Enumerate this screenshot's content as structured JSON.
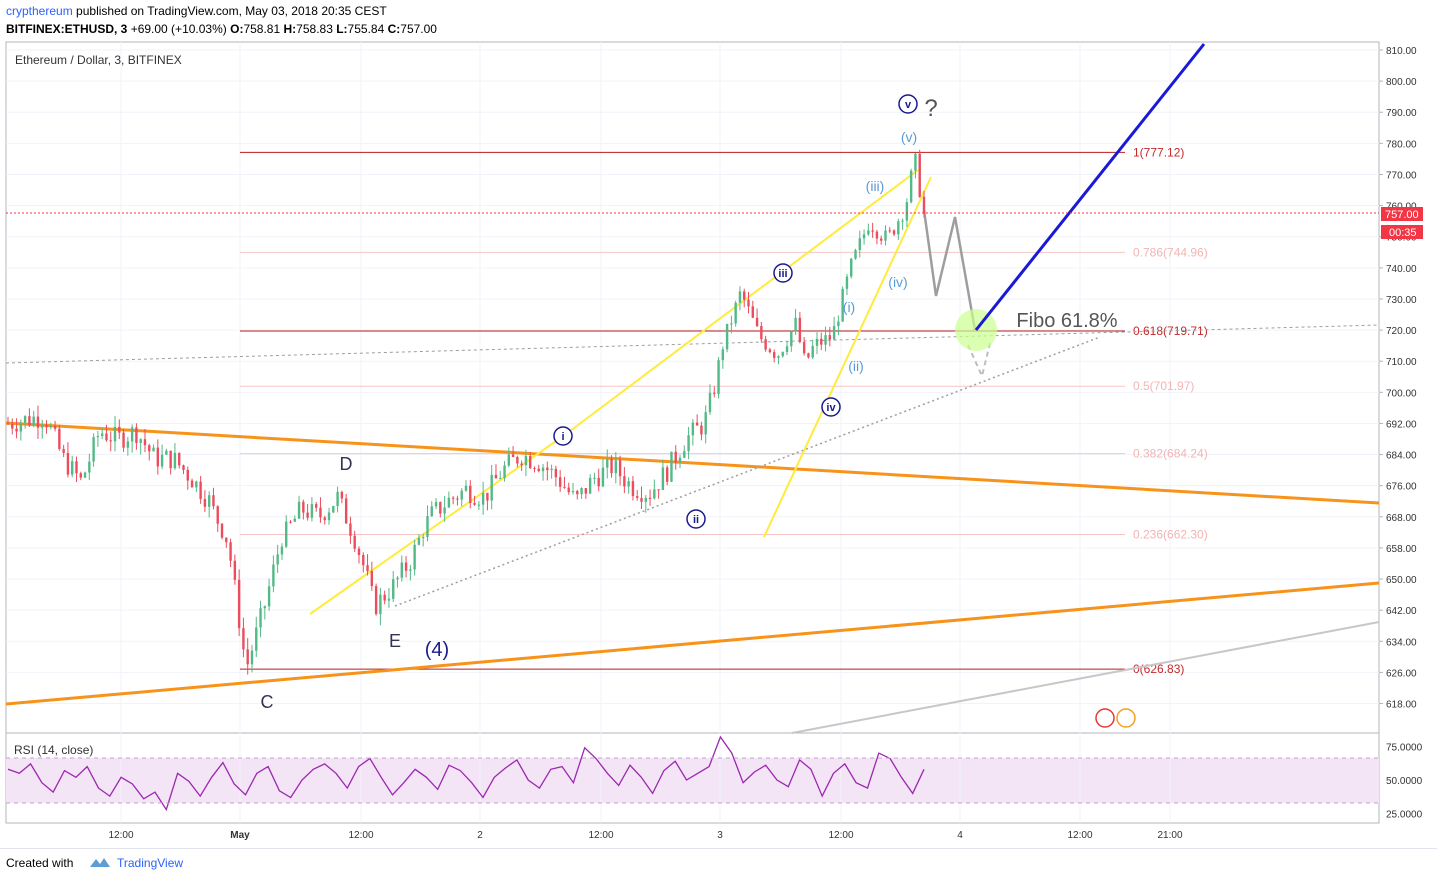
{
  "header": {
    "author": "crypthereum",
    "published": "published on TradingView.com, May 03, 2018 20:35 CEST",
    "symbol": "BITFINEX:ETHUSD, 3",
    "change": "+69.00 (+10.03%)",
    "open": "758.81",
    "high": "758.83",
    "low": "755.84",
    "close": "757.00"
  },
  "footer": {
    "created_with": "Created with",
    "brand": "TradingView"
  },
  "colors": {
    "trend_orange": "#f7931a",
    "wave_yellow": "#ffeb3b",
    "projection_blue": "#1a1ad6",
    "fib_red": "#b71c1c",
    "rsi_purple": "#9c27b0",
    "price_label": "#f23645"
  },
  "chart_data": [
    {
      "type": "candlestick",
      "title": "Ethereum / Dollar, 3, BITFINEX",
      "ylim": [
        612,
        812
      ],
      "y_ticks": [
        618,
        626,
        634,
        642,
        650,
        658,
        668,
        676,
        684,
        692,
        700,
        710,
        720,
        730,
        740,
        750,
        760,
        770,
        780,
        790,
        800,
        810
      ],
      "x_ticks": [
        "12:00",
        "May",
        "12:00",
        "2",
        "12:00",
        "3",
        "12:00",
        "4",
        "12:00",
        "21:00"
      ],
      "last_price": "757.00",
      "countdown": "00:35",
      "fib_levels": [
        {
          "label": "1(777.12)",
          "value": 777.12
        },
        {
          "label": "0.786(744.96)",
          "value": 744.96
        },
        {
          "label": "0.618(719.71)",
          "value": 719.71
        },
        {
          "label": "0.5(701.97)",
          "value": 701.97
        },
        {
          "label": "0.382(684.24)",
          "value": 684.24
        },
        {
          "label": "0.236(662.30)",
          "value": 662.3
        },
        {
          "label": "0(626.83)",
          "value": 626.83
        }
      ],
      "price_path": [
        [
          0,
          692
        ],
        [
          0.02,
          693
        ],
        [
          0.04,
          694
        ],
        [
          0.06,
          683
        ],
        [
          0.08,
          677
        ],
        [
          0.1,
          690
        ],
        [
          0.12,
          688
        ],
        [
          0.14,
          690
        ],
        [
          0.16,
          683
        ],
        [
          0.18,
          683
        ],
        [
          0.2,
          678
        ],
        [
          0.22,
          672
        ],
        [
          0.24,
          660
        ],
        [
          0.26,
          627
        ],
        [
          0.28,
          643
        ],
        [
          0.3,
          662
        ],
        [
          0.32,
          670
        ],
        [
          0.34,
          668
        ],
        [
          0.36,
          673
        ],
        [
          0.37,
          667
        ],
        [
          0.39,
          652
        ],
        [
          0.4,
          643
        ],
        [
          0.42,
          648
        ],
        [
          0.44,
          655
        ],
        [
          0.46,
          668
        ],
        [
          0.48,
          672
        ],
        [
          0.5,
          675
        ],
        [
          0.52,
          673
        ],
        [
          0.54,
          680
        ],
        [
          0.56,
          684
        ],
        [
          0.58,
          682
        ],
        [
          0.6,
          678
        ],
        [
          0.62,
          672
        ],
        [
          0.64,
          678
        ],
        [
          0.66,
          681
        ],
        [
          0.68,
          676
        ],
        [
          0.7,
          674
        ],
        [
          0.72,
          680
        ],
        [
          0.74,
          688
        ],
        [
          0.76,
          692
        ],
        [
          0.77,
          700
        ],
        [
          0.78,
          715
        ],
        [
          0.8,
          732
        ],
        [
          0.82,
          718
        ],
        [
          0.84,
          712
        ],
        [
          0.86,
          722
        ],
        [
          0.87,
          709
        ],
        [
          0.88,
          715
        ],
        [
          0.9,
          718
        ],
        [
          0.92,
          740
        ],
        [
          0.94,
          755
        ],
        [
          0.96,
          749
        ],
        [
          0.98,
          760
        ],
        [
          0.99,
          775
        ],
        [
          1.0,
          757
        ]
      ],
      "annotations": [
        "v",
        "?",
        "(v)",
        "(iii)",
        "iii",
        "(iv)",
        "(i)",
        "(ii)",
        "iv",
        "i",
        "ii",
        "D",
        "E",
        "C",
        "(4)",
        "Fibo 61.8%"
      ]
    },
    {
      "type": "line",
      "title": "RSI (14, close)",
      "ylim": [
        18,
        85
      ],
      "y_ticks": [
        "75.0000",
        "50.0000",
        "25.0000"
      ],
      "band": [
        30,
        70
      ],
      "values": [
        58,
        55,
        62,
        48,
        41,
        57,
        52,
        60,
        44,
        38,
        52,
        47,
        36,
        41,
        28,
        55,
        49,
        38,
        52,
        63,
        47,
        39,
        55,
        60,
        42,
        37,
        50,
        58,
        62,
        55,
        44,
        60,
        66,
        52,
        39,
        48,
        58,
        52,
        43,
        61,
        57,
        48,
        37,
        52,
        59,
        65,
        50,
        44,
        58,
        60,
        48,
        74,
        66,
        55,
        46,
        61,
        52,
        40,
        57,
        64,
        50,
        55,
        60,
        82,
        70,
        48,
        56,
        61,
        50,
        45,
        65,
        58,
        38,
        55,
        62,
        48,
        44,
        70,
        66,
        52,
        40,
        58
      ]
    }
  ]
}
